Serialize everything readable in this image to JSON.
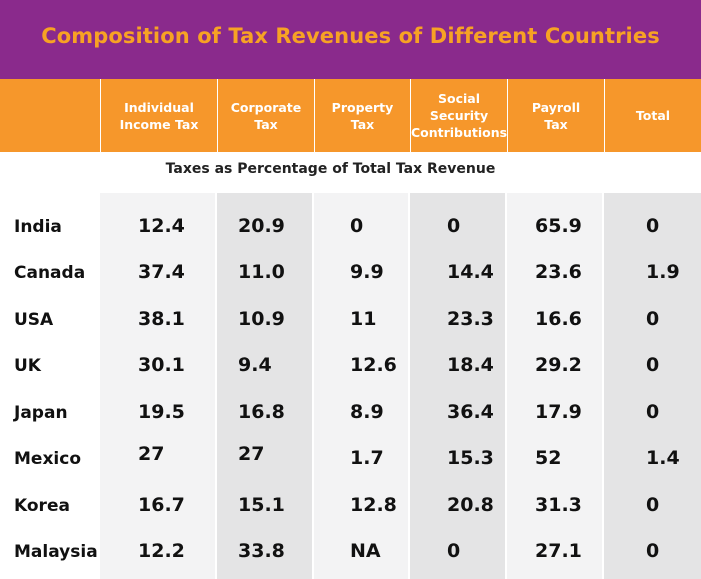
{
  "chart_data": {
    "type": "table",
    "title": "Composition of Tax Revenues of Different Countries",
    "subtitle": "Taxes as Percentage of Total Tax Revenue",
    "columns": [
      "Individual\nIncome Tax",
      "Corporate\nTax",
      "Property\nTax",
      "Social\nSecurity\nContributions",
      "Payroll\nTax",
      "Total"
    ],
    "rows": [
      {
        "country": "India",
        "values": [
          "12.4",
          "20.9",
          "0",
          "0",
          "65.9",
          "0"
        ]
      },
      {
        "country": "Canada",
        "values": [
          "37.4",
          "11.0",
          "9.9",
          "14.4",
          "23.6",
          "1.9"
        ]
      },
      {
        "country": "USA",
        "values": [
          "38.1",
          "10.9",
          "11",
          "23.3",
          "16.6",
          "0"
        ]
      },
      {
        "country": "UK",
        "values": [
          "30.1",
          "9.4",
          "12.6",
          "18.4",
          "29.2",
          "0"
        ]
      },
      {
        "country": "Japan",
        "values": [
          "19.5",
          "16.8",
          "8.9",
          "36.4",
          "17.9",
          "0"
        ]
      },
      {
        "country": "Mexico",
        "values": [
          "27",
          "27",
          "1.7",
          "15.3",
          "52",
          "1.4"
        ]
      },
      {
        "country": "Korea",
        "values": [
          "16.7",
          "15.1",
          "12.8",
          "20.8",
          "31.3",
          "0"
        ]
      },
      {
        "country": "Malaysia",
        "values": [
          "12.2",
          "33.8",
          "NA",
          "0",
          "27.1",
          "0"
        ]
      }
    ]
  },
  "colors": {
    "title_bg": "#8a2a8c",
    "title_text": "#f7a224",
    "header_bg": "#f6972b",
    "header_text": "#ffffff",
    "column_shade_light": "#f3f3f4",
    "column_shade_dark": "#e4e4e5"
  }
}
